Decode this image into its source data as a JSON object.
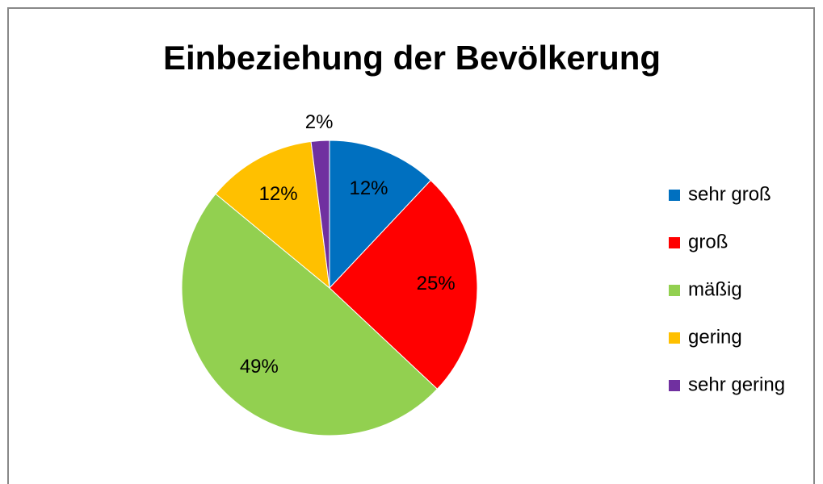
{
  "chart_data": {
    "type": "pie",
    "title": "Einbeziehung der Bevölkerung",
    "categories": [
      "sehr groß",
      "groß",
      "mäßig",
      "gering",
      "sehr gering"
    ],
    "values": [
      12,
      25,
      49,
      12,
      2
    ],
    "value_labels": [
      "12%",
      "25%",
      "49%",
      "12%",
      "2%"
    ],
    "colors": [
      "#0070c0",
      "#ff0000",
      "#92d050",
      "#ffc000",
      "#7030a0"
    ],
    "legend": "right"
  }
}
